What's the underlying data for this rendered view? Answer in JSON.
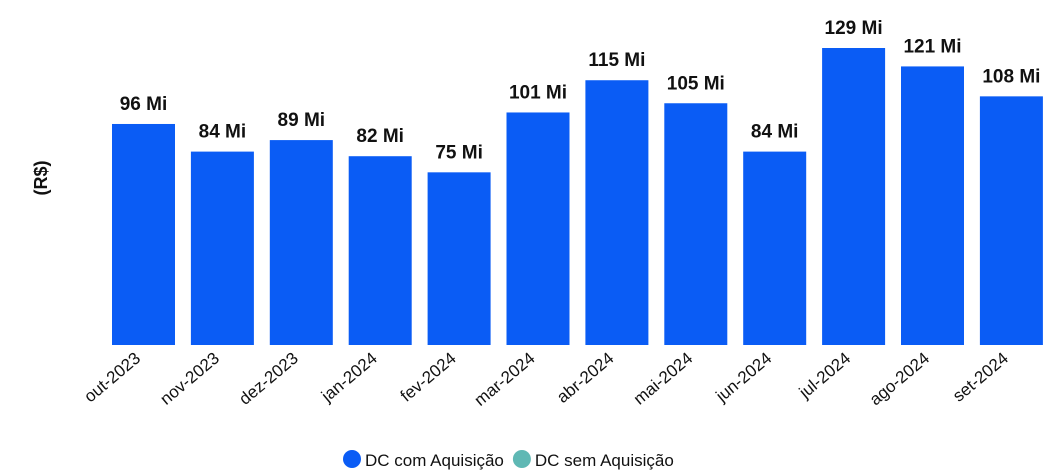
{
  "chart_data": {
    "type": "bar",
    "y_label": "(R$)",
    "categories": [
      "out-2023",
      "nov-2023",
      "dez-2023",
      "jan-2024",
      "fev-2024",
      "mar-2024",
      "abr-2024",
      "mai-2024",
      "jun-2024",
      "jul-2024",
      "ago-2024",
      "set-2024"
    ],
    "series": [
      {
        "name": "DC com Aquisição",
        "color": "#0a5cf5",
        "values": [
          96,
          84,
          89,
          82,
          75,
          101,
          115,
          105,
          84,
          129,
          121,
          108
        ],
        "value_labels": [
          "96 Mi",
          "84 Mi",
          "89 Mi",
          "82 Mi",
          "75 Mi",
          "101 Mi",
          "115 Mi",
          "105 Mi",
          "84 Mi",
          "129 Mi",
          "121 Mi",
          "108 Mi"
        ]
      },
      {
        "name": "DC sem Aquisição",
        "color": "#5fb8b4",
        "values": [
          null,
          null,
          null,
          null,
          null,
          null,
          null,
          null,
          null,
          null,
          null,
          null
        ]
      }
    ],
    "legend": "bottom"
  }
}
